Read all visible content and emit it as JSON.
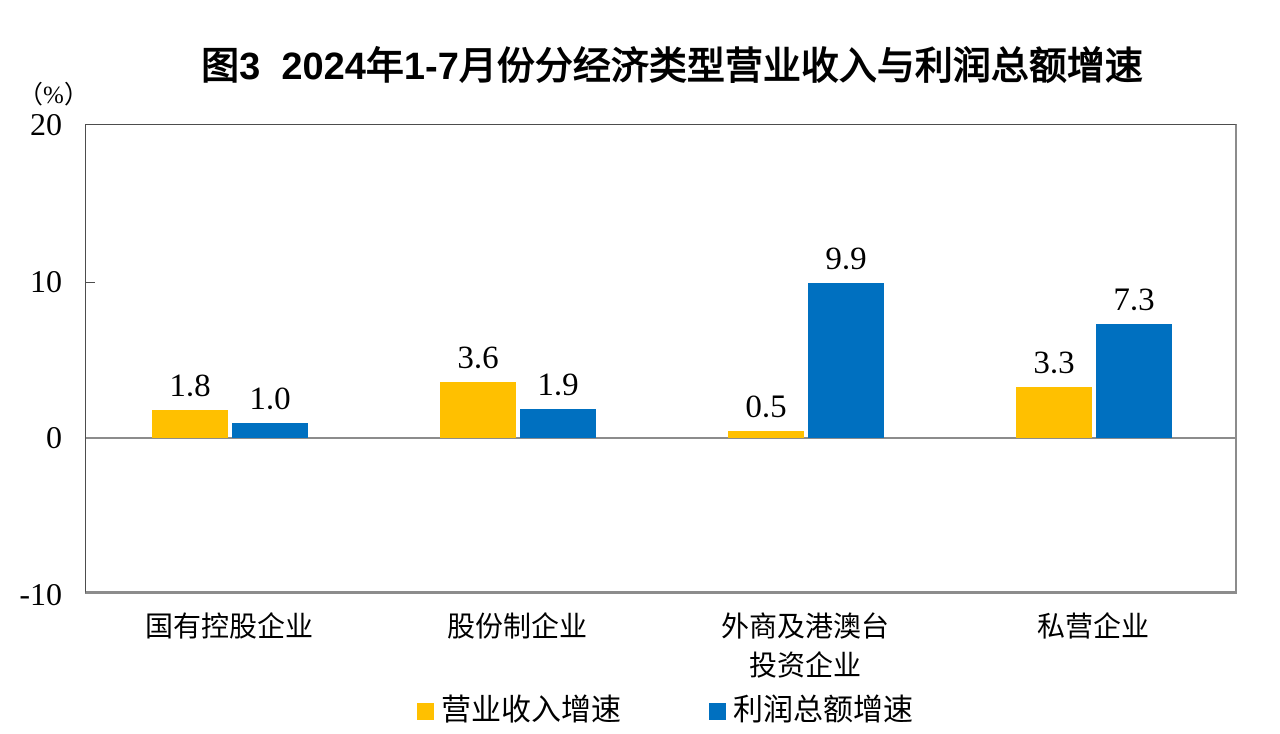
{
  "chart_data": {
    "type": "bar",
    "title": "图3  2024年1-7月份分经济类型营业收入与利润总额增速",
    "unit_label": "（%）",
    "categories": [
      "国有控股企业",
      "股份制企业",
      "外商及港澳台\n投资企业",
      "私营企业"
    ],
    "series": [
      {
        "name": "营业收入增速",
        "color": "#FFC000",
        "values": [
          1.8,
          3.6,
          0.5,
          3.3
        ]
      },
      {
        "name": "利润总额增速",
        "color": "#0070C0",
        "values": [
          1.0,
          1.9,
          9.9,
          7.3
        ]
      }
    ],
    "ylabel": "",
    "xlabel": "",
    "ylim": [
      -10,
      20
    ],
    "yticks": [
      20,
      10,
      0,
      -10
    ],
    "value_label_decimals": 1,
    "grid": "zero-line-only",
    "legend_position": "bottom"
  }
}
